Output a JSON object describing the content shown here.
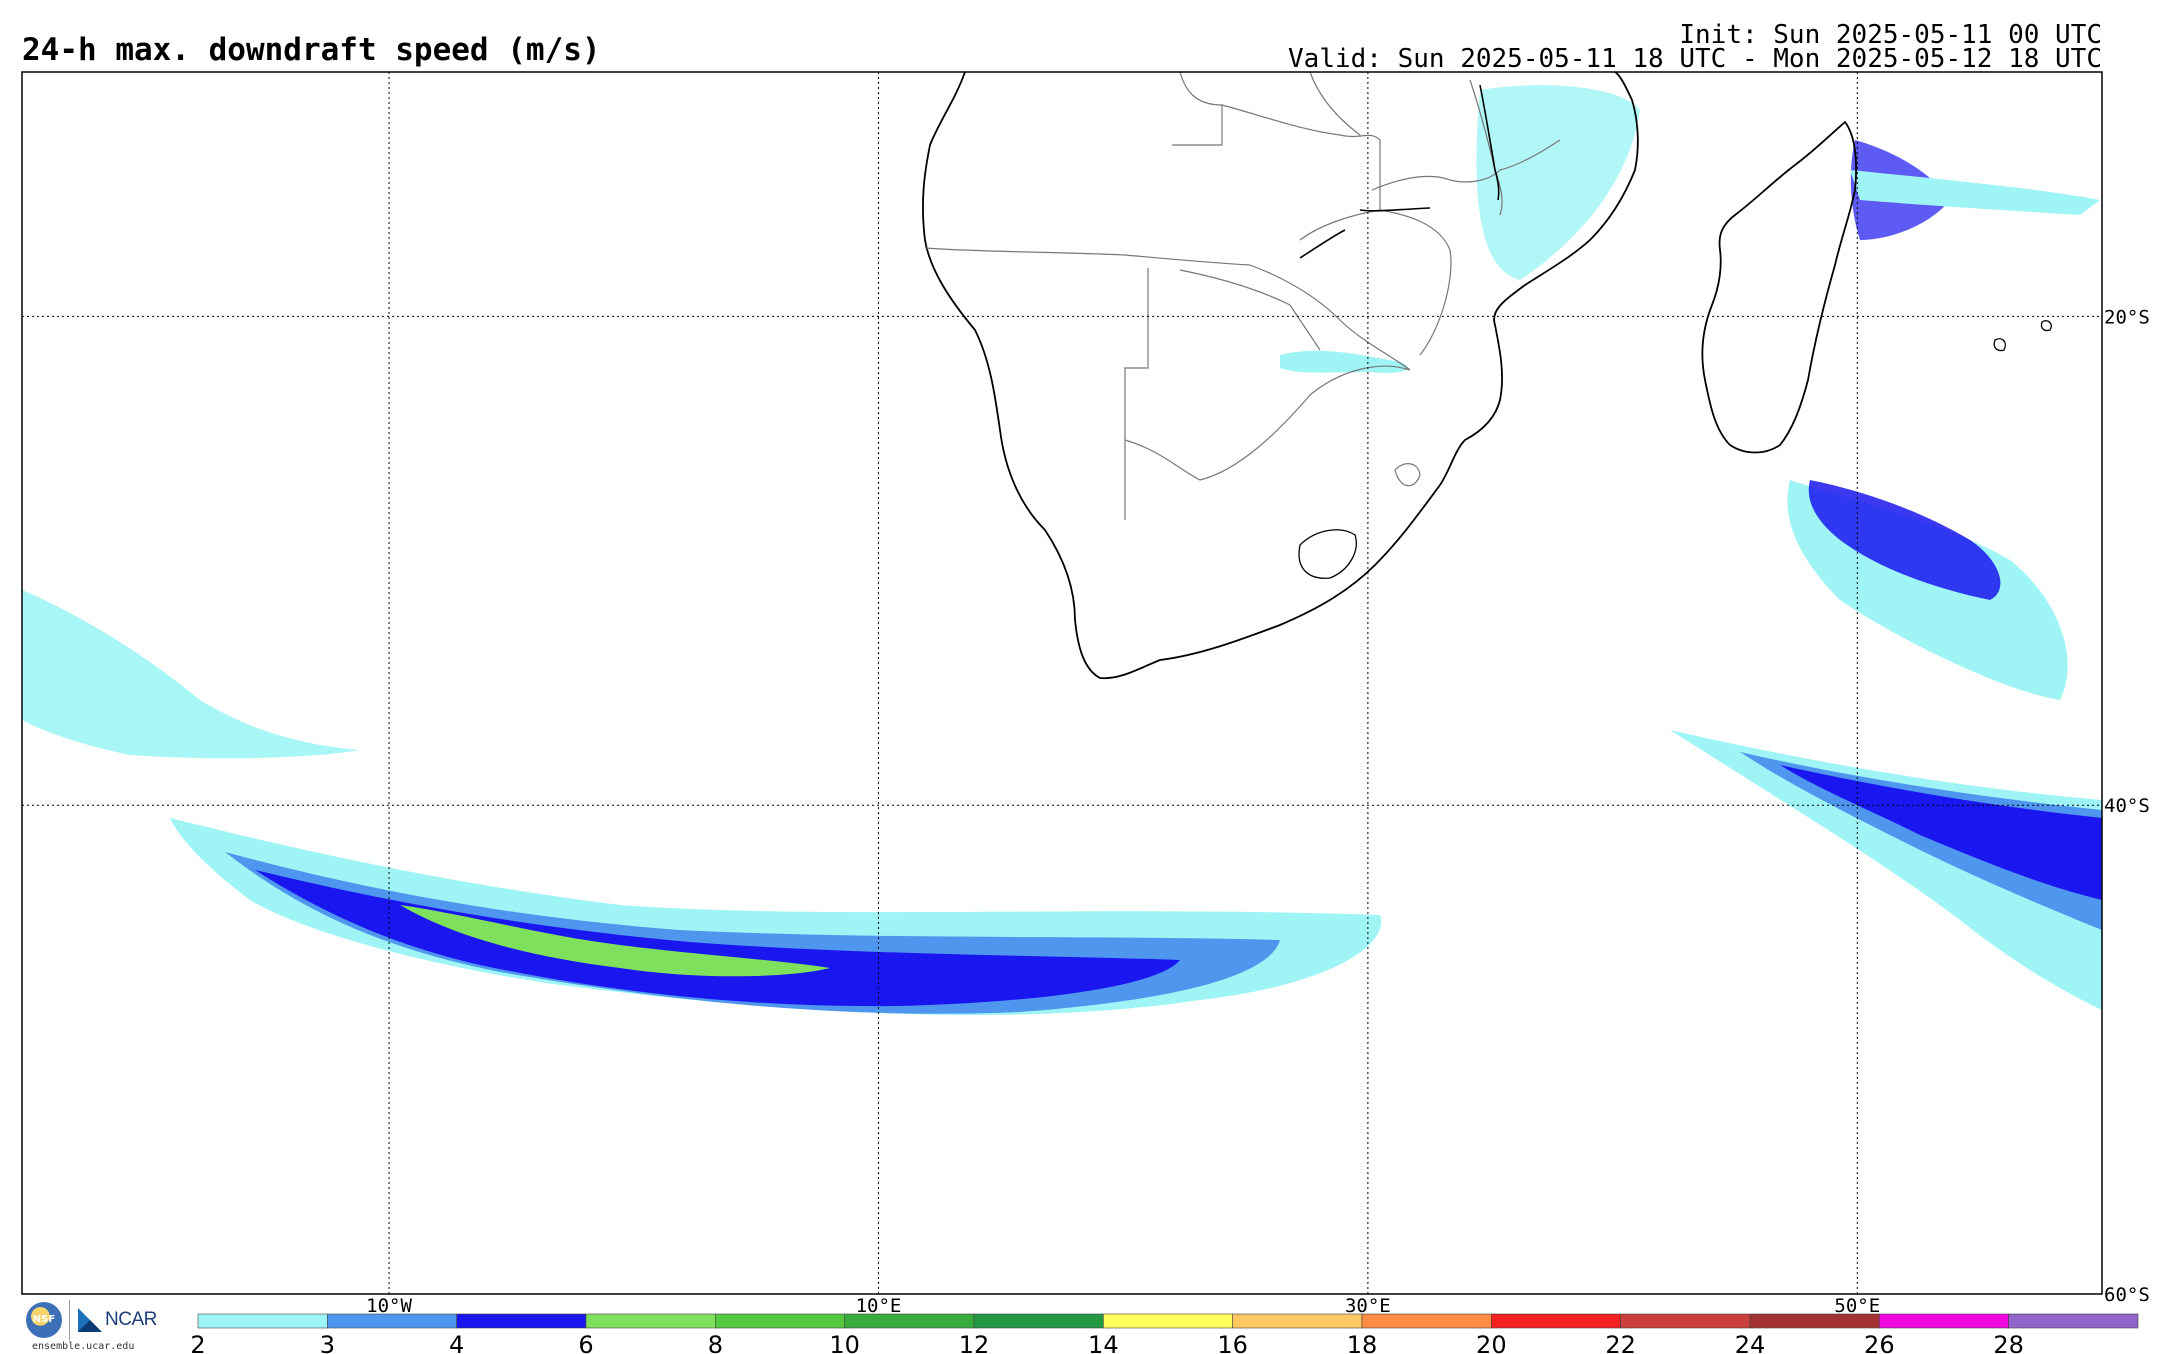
{
  "header": {
    "title": "24-h max. downdraft speed (m/s)",
    "init": "Init: Sun 2025-05-11 00 UTC",
    "valid": "Valid: Sun 2025-05-11 18 UTC - Mon 2025-05-12 18 UTC"
  },
  "map": {
    "projection": "cylindrical",
    "lon_range": [
      -25,
      60
    ],
    "lat_range": [
      -60,
      -10
    ],
    "lon_ticks": [
      {
        "value": -10,
        "label": "10°W"
      },
      {
        "value": 10,
        "label": "10°E"
      },
      {
        "value": 30,
        "label": "30°E"
      },
      {
        "value": 50,
        "label": "50°E"
      }
    ],
    "lat_ticks": [
      {
        "value": -20,
        "label": "20°S"
      },
      {
        "value": -40,
        "label": "40°S"
      },
      {
        "value": -60,
        "label": "60°S"
      }
    ],
    "gridlines": "dotted"
  },
  "colorbar": {
    "labels": [
      "2",
      "3",
      "4",
      "6",
      "8",
      "10",
      "12",
      "14",
      "16",
      "18",
      "20",
      "22",
      "24",
      "26",
      "28"
    ],
    "colors": [
      "#9ff5f5",
      "#4f97ee",
      "#1a16ef",
      "#7fe05d",
      "#55c93f",
      "#37ac3c",
      "#239944",
      "#ffff5e",
      "#ffc861",
      "#ff8c45",
      "#f52020",
      "#cc3f3f",
      "#a33333",
      "#ee08df",
      "#9265cc"
    ]
  },
  "logos": {
    "nsf": "NSF",
    "ncar": "NCAR",
    "site": "ensemble.ucar.edu"
  }
}
